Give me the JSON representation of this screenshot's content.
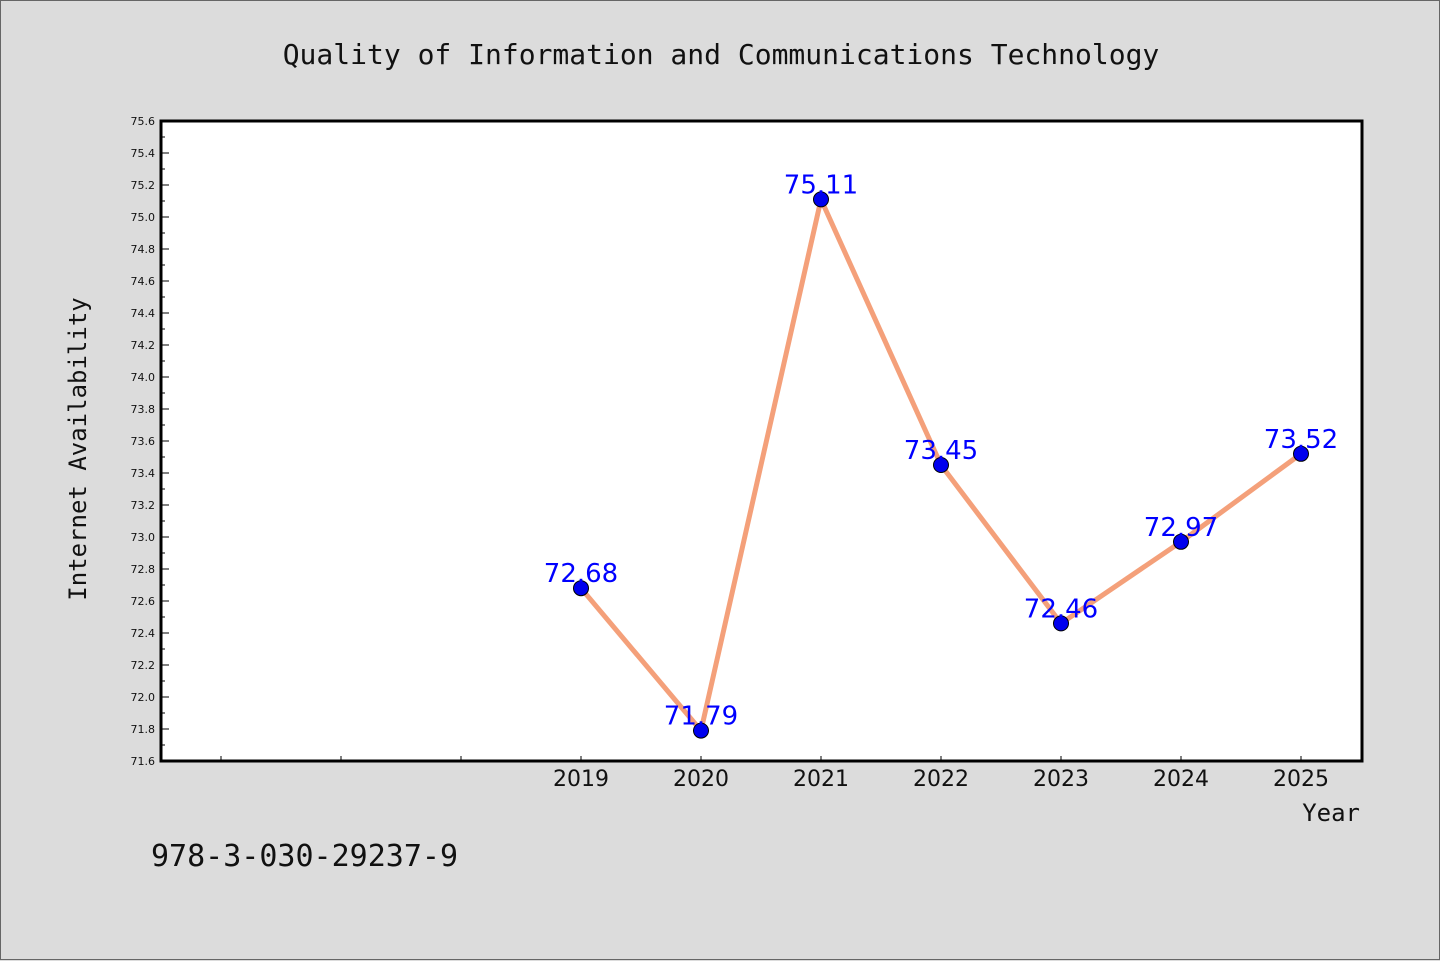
{
  "chart_data": {
    "type": "line",
    "title": "Quality of Information and Communications Technology",
    "xlabel": "Year",
    "ylabel": "Internet Availability",
    "categories": [
      "2019",
      "2020",
      "2021",
      "2022",
      "2023",
      "2024",
      "2025"
    ],
    "series": [
      {
        "values": [
          72.68,
          71.79,
          75.11,
          73.45,
          72.46,
          72.97,
          73.52
        ],
        "labels": [
          "72.68",
          "71.79",
          "75.11",
          "73.45",
          "72.46",
          "72.97",
          "73.52"
        ],
        "line_color": "#f4a07a",
        "marker_color": "#0000ee"
      }
    ],
    "ylim": [
      71.6,
      75.6
    ],
    "yticks": [
      "71.6",
      "71.8",
      "72.0",
      "72.2",
      "72.4",
      "72.6",
      "72.8",
      "73.0",
      "73.2",
      "73.4",
      "73.6",
      "73.8",
      "74.0",
      "74.2",
      "74.4",
      "74.6",
      "74.8",
      "75.0",
      "75.2",
      "75.4",
      "75.6"
    ],
    "grid": false,
    "label_color": "#0000ff"
  },
  "footer": {
    "isbn": "978-3-030-29237-9"
  }
}
